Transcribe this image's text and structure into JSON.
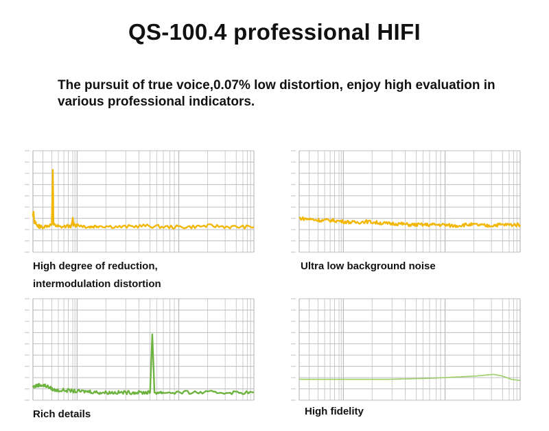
{
  "header": {
    "title": "QS-100.4 professional HIFI",
    "subtitle": "The pursuit of true voice,0.07% low distortion, enjoy high evaluation in various professional indicators."
  },
  "colors": {
    "grid": "#bdbdbd",
    "tick_text": "#b0b0b0",
    "series_yellow": "#f2b705",
    "series_green": "#6db33f",
    "series_lightgreen": "#9ccc65"
  },
  "chart_data": [
    {
      "type": "line",
      "caption": [
        "High degree of reduction,",
        "intermodulation distortion"
      ],
      "color": "#f2b705",
      "series": [
        {
          "values": [
            [
              0.0,
              88
            ],
            [
              0.003,
              91
            ],
            [
              0.006,
              83
            ],
            [
              0.02,
              79
            ],
            [
              0.04,
              78
            ],
            [
              0.085,
              80
            ],
            [
              0.09,
              130
            ],
            [
              0.093,
              80
            ],
            [
              0.12,
              78
            ],
            [
              0.175,
              79
            ],
            [
              0.18,
              86
            ],
            [
              0.185,
              79
            ],
            [
              0.2,
              80
            ],
            [
              0.25,
              78
            ],
            [
              0.3,
              79
            ],
            [
              0.4,
              78
            ],
            [
              0.5,
              79
            ],
            [
              0.6,
              78
            ],
            [
              0.7,
              78
            ],
            [
              0.8,
              79
            ],
            [
              0.9,
              78
            ],
            [
              1.0,
              78
            ]
          ]
        }
      ]
    },
    {
      "type": "line",
      "caption": [
        "Ultra low background noise"
      ],
      "color": "#f2b705",
      "series": [
        {
          "values": [
            [
              0.0,
              86
            ],
            [
              0.05,
              85
            ],
            [
              0.1,
              84
            ],
            [
              0.15,
              84
            ],
            [
              0.2,
              83
            ],
            [
              0.25,
              82
            ],
            [
              0.3,
              83
            ],
            [
              0.35,
              82
            ],
            [
              0.4,
              81
            ],
            [
              0.45,
              81
            ],
            [
              0.5,
              80
            ],
            [
              0.55,
              80
            ],
            [
              0.6,
              80
            ],
            [
              0.65,
              80
            ],
            [
              0.7,
              79
            ],
            [
              0.75,
              80
            ],
            [
              0.8,
              80
            ],
            [
              0.85,
              79
            ],
            [
              0.9,
              80
            ],
            [
              0.95,
              80
            ],
            [
              1.0,
              80
            ]
          ]
        }
      ]
    },
    {
      "type": "line",
      "caption": [
        "Rich details"
      ],
      "color": "#6db33f",
      "series": [
        {
          "values": [
            [
              0.0,
              67
            ],
            [
              0.03,
              69
            ],
            [
              0.06,
              68
            ],
            [
              0.1,
              64
            ],
            [
              0.15,
              64
            ],
            [
              0.2,
              63
            ],
            [
              0.25,
              63
            ],
            [
              0.3,
              62
            ],
            [
              0.35,
              62
            ],
            [
              0.4,
              62
            ],
            [
              0.45,
              62
            ],
            [
              0.5,
              62
            ],
            [
              0.53,
              62
            ],
            [
              0.54,
              115
            ],
            [
              0.55,
              62
            ],
            [
              0.6,
              62
            ],
            [
              0.7,
              62
            ],
            [
              0.8,
              62
            ],
            [
              0.9,
              62
            ],
            [
              1.0,
              62
            ]
          ]
        }
      ]
    },
    {
      "type": "line",
      "caption": [
        "High fidelity"
      ],
      "color": "#9ccc65",
      "series": [
        {
          "values": [
            [
              0.0,
              74
            ],
            [
              0.1,
              74
            ],
            [
              0.2,
              74
            ],
            [
              0.3,
              74
            ],
            [
              0.4,
              74
            ],
            [
              0.5,
              74.5
            ],
            [
              0.6,
              75
            ],
            [
              0.7,
              76
            ],
            [
              0.8,
              77
            ],
            [
              0.85,
              78
            ],
            [
              0.88,
              78.5
            ],
            [
              0.92,
              77
            ],
            [
              0.96,
              74
            ],
            [
              1.0,
              73
            ]
          ]
        }
      ]
    }
  ]
}
